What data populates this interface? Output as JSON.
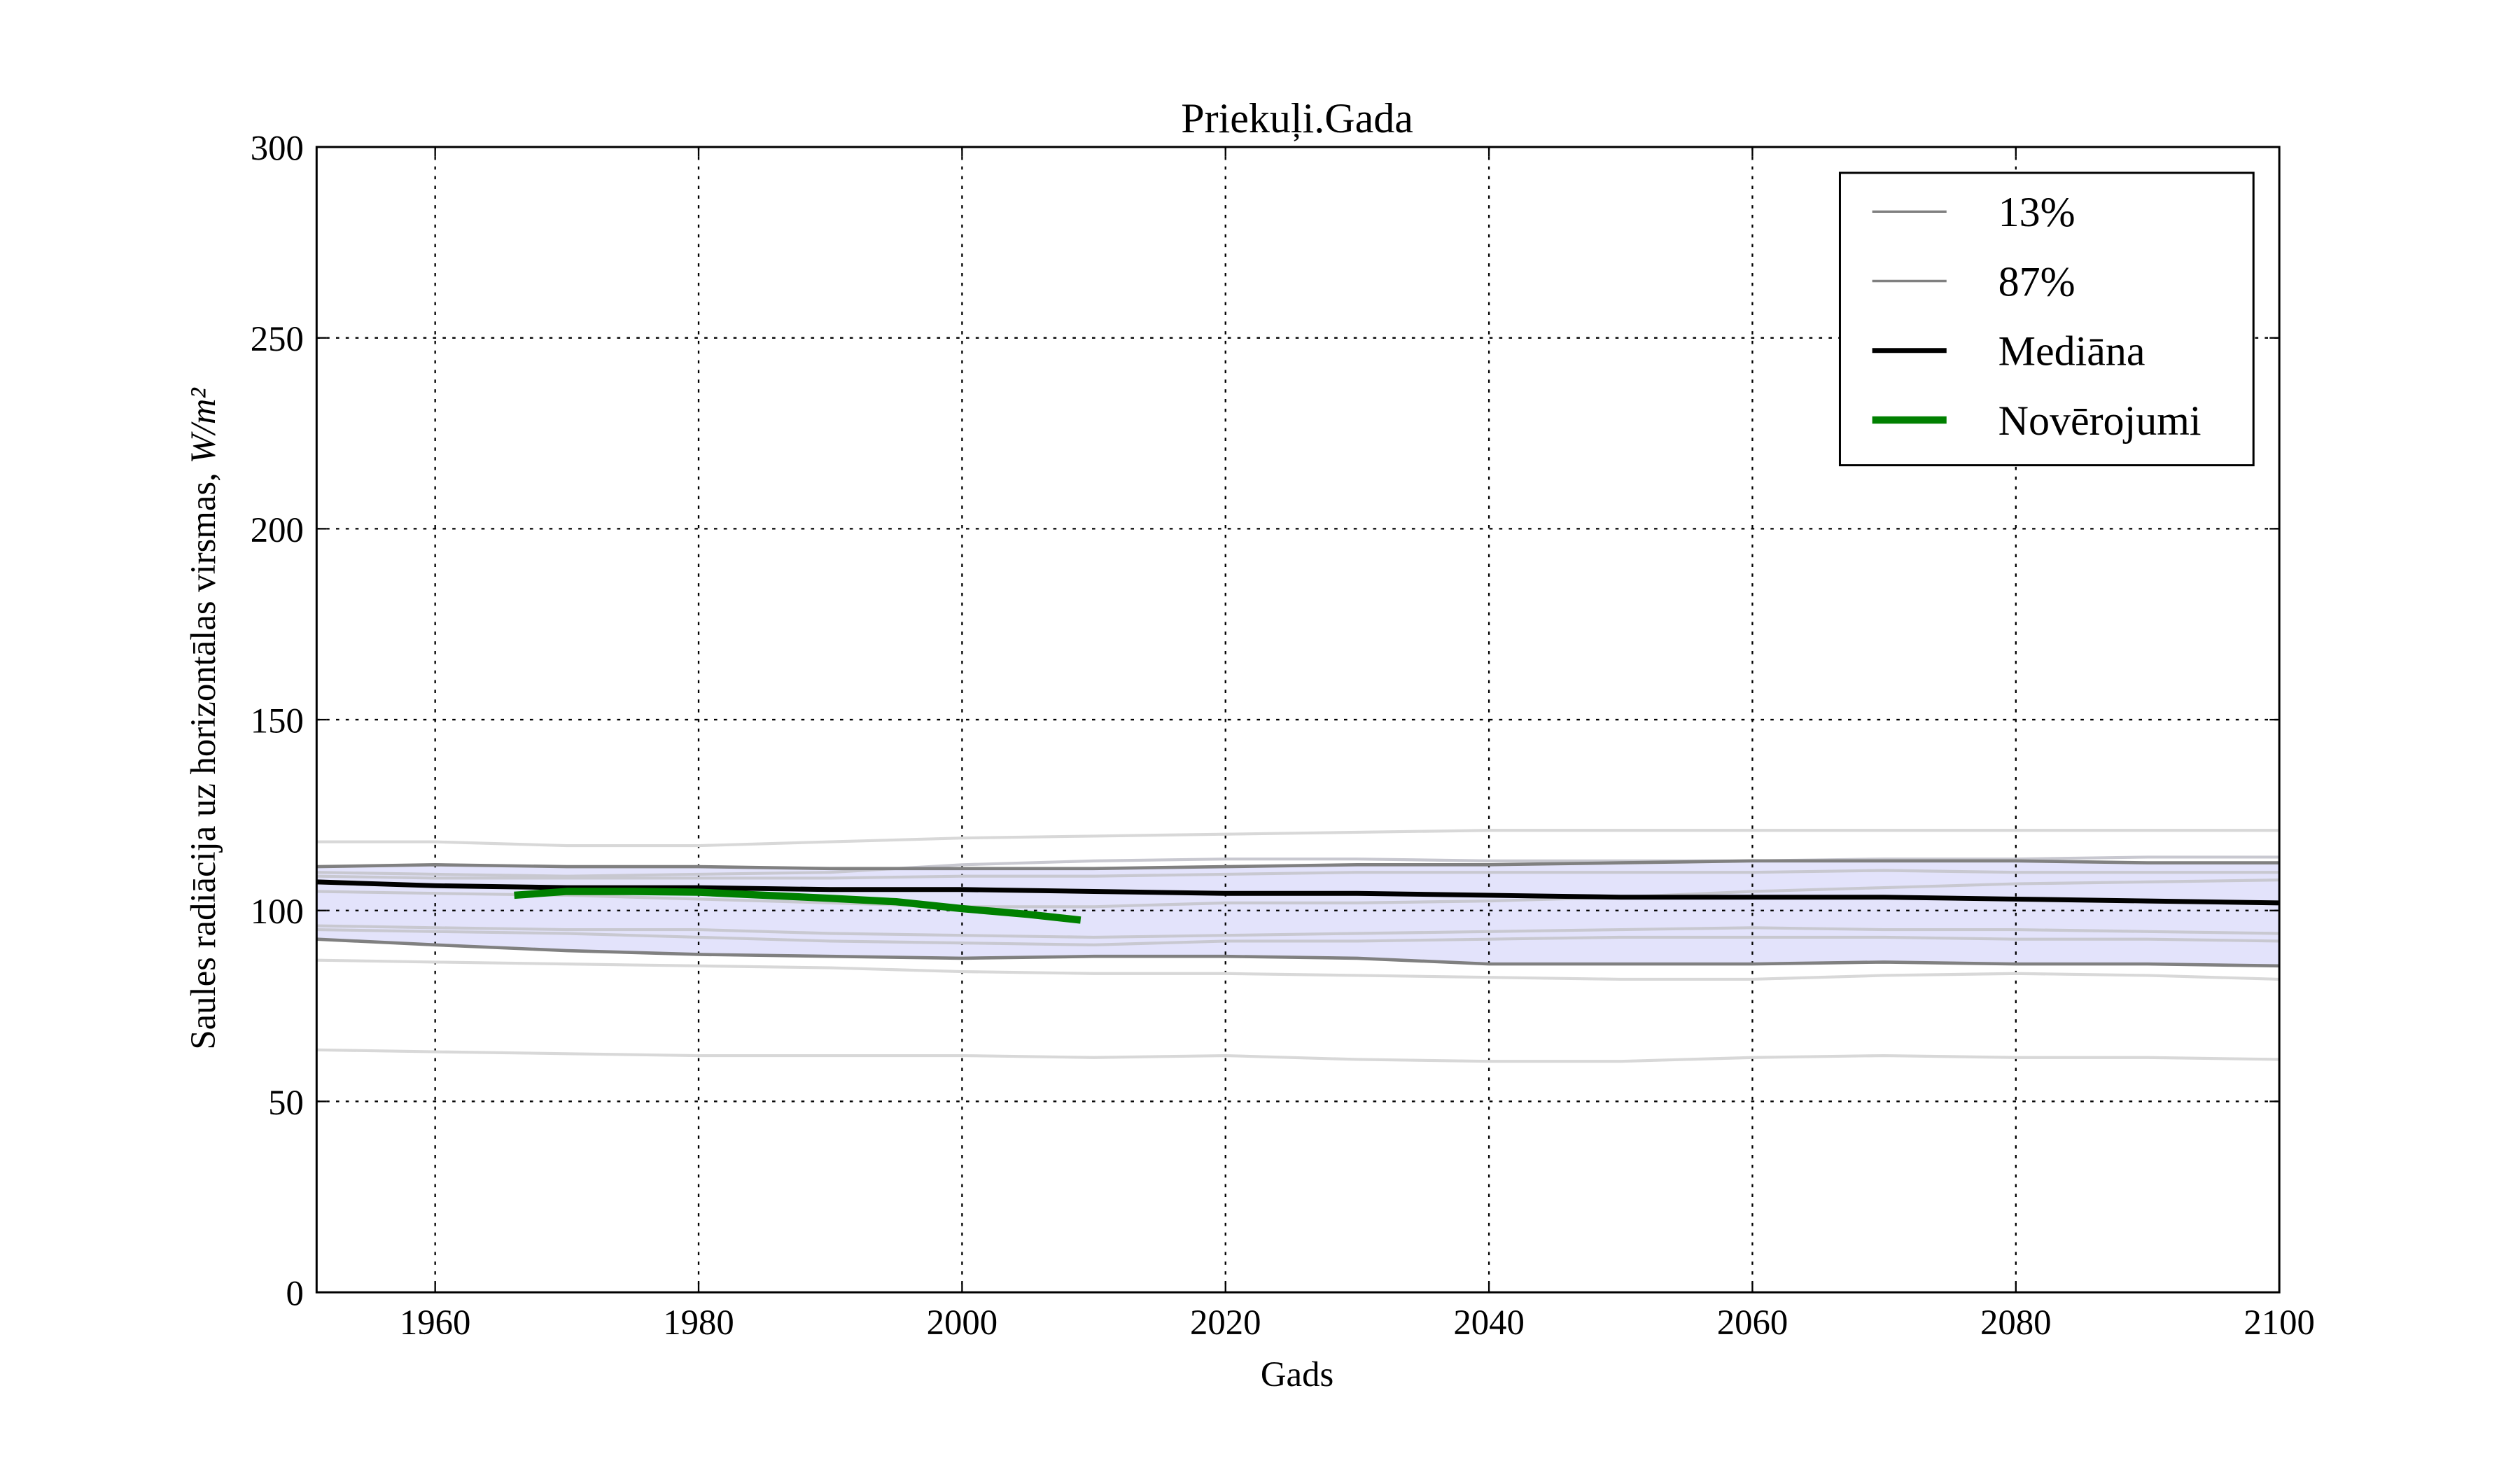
{
  "chart_data": {
    "type": "line",
    "title": "Priekuļi.Gada",
    "xlabel": "Gads",
    "ylabel": "Saules radiācija uz horizontālas virsmas,",
    "ylabel_unit": "W/m²",
    "xlim": [
      1951,
      2100
    ],
    "ylim": [
      0,
      300
    ],
    "xticks": [
      1960,
      1980,
      2000,
      2020,
      2040,
      2060,
      2080,
      2100
    ],
    "yticks": [
      0,
      50,
      100,
      150,
      200,
      250,
      300
    ],
    "grid": true,
    "legend_position": "top-right",
    "legend": [
      {
        "label": "13%",
        "color": "#808080"
      },
      {
        "label": "87%",
        "color": "#808080"
      },
      {
        "label": "Mediāna",
        "color": "#000000"
      },
      {
        "label": "Novērojumi",
        "color": "#008000"
      }
    ],
    "x": [
      1951,
      1960,
      1970,
      1980,
      1990,
      2000,
      2010,
      2020,
      2030,
      2040,
      2050,
      2060,
      2070,
      2080,
      2090,
      2100
    ],
    "band_color": "#e3e3fb",
    "series": [
      {
        "name": "13%",
        "role": "p13",
        "color": "#808080",
        "values": [
          92.5,
          91,
          89.5,
          88.5,
          88,
          87.5,
          88,
          88,
          87.5,
          86,
          86,
          86,
          86.5,
          86,
          86,
          85.5
        ]
      },
      {
        "name": "87%",
        "role": "p87",
        "color": "#808080",
        "values": [
          111.5,
          112,
          111.5,
          111.5,
          111,
          111,
          111,
          111.5,
          112,
          112,
          112.5,
          113,
          113,
          113,
          112.5,
          112.5
        ]
      },
      {
        "name": "Mediāna",
        "role": "median",
        "color": "#000000",
        "values": [
          107.5,
          106.5,
          106,
          106,
          105.5,
          105.5,
          105,
          104.5,
          104.5,
          104,
          103.5,
          103.5,
          103.5,
          103,
          102.5,
          102
        ]
      },
      {
        "name": "model",
        "role": "model",
        "color": "#d8d8d8",
        "values": [
          118,
          118,
          117,
          117,
          118,
          119,
          119.5,
          120,
          120.5,
          121,
          121,
          121,
          121,
          121,
          121,
          121
        ]
      },
      {
        "name": "model",
        "role": "model",
        "color": "#c8c8d0",
        "values": [
          110,
          109.5,
          109,
          109.5,
          110,
          112,
          113,
          113.5,
          113.5,
          113,
          113,
          113,
          113.5,
          113.5,
          114,
          114
        ]
      },
      {
        "name": "model",
        "role": "model",
        "color": "#c8c8d0",
        "values": [
          109,
          108.5,
          108.5,
          108.5,
          108.5,
          109,
          109,
          109.5,
          110,
          110,
          110,
          110,
          110.5,
          110,
          110,
          110
        ]
      },
      {
        "name": "model",
        "role": "model",
        "color": "#c8c8d0",
        "values": [
          105,
          104.5,
          104,
          103,
          102,
          101,
          101,
          102,
          102,
          102.5,
          103.5,
          105,
          106,
          107,
          107.5,
          108
        ]
      },
      {
        "name": "model",
        "role": "model",
        "color": "#c8c8d0",
        "values": [
          96,
          95.5,
          95,
          95,
          94,
          93.5,
          93,
          93.5,
          94,
          94.5,
          95,
          95.5,
          95,
          95,
          94.5,
          94
        ]
      },
      {
        "name": "model",
        "role": "model",
        "color": "#c8c8d0",
        "values": [
          95,
          94.5,
          94,
          93,
          92,
          91.5,
          91,
          92,
          92,
          92.5,
          93,
          93,
          93,
          92.5,
          92.5,
          92
        ]
      },
      {
        "name": "model",
        "role": "model",
        "color": "#d8d8d8",
        "values": [
          87,
          86.5,
          86,
          85.5,
          85,
          84,
          83.5,
          83.5,
          83,
          82.5,
          82,
          82,
          83,
          83.5,
          83,
          82
        ]
      },
      {
        "name": "model",
        "role": "model",
        "color": "#d8d8d8",
        "values": [
          63.5,
          63,
          62.5,
          62,
          62,
          62,
          61.5,
          62,
          61,
          60.5,
          60.5,
          61.5,
          62,
          61.5,
          61.5,
          61
        ]
      },
      {
        "name": "Novērojumi",
        "role": "obs",
        "color": "#008000",
        "x": [
          1966,
          1970,
          1975,
          1980,
          1985,
          1990,
          1995,
          2000,
          2005,
          2009
        ],
        "values": [
          104,
          105,
          105,
          104.8,
          104,
          103.2,
          102.3,
          100.5,
          99,
          97.5
        ]
      }
    ]
  }
}
